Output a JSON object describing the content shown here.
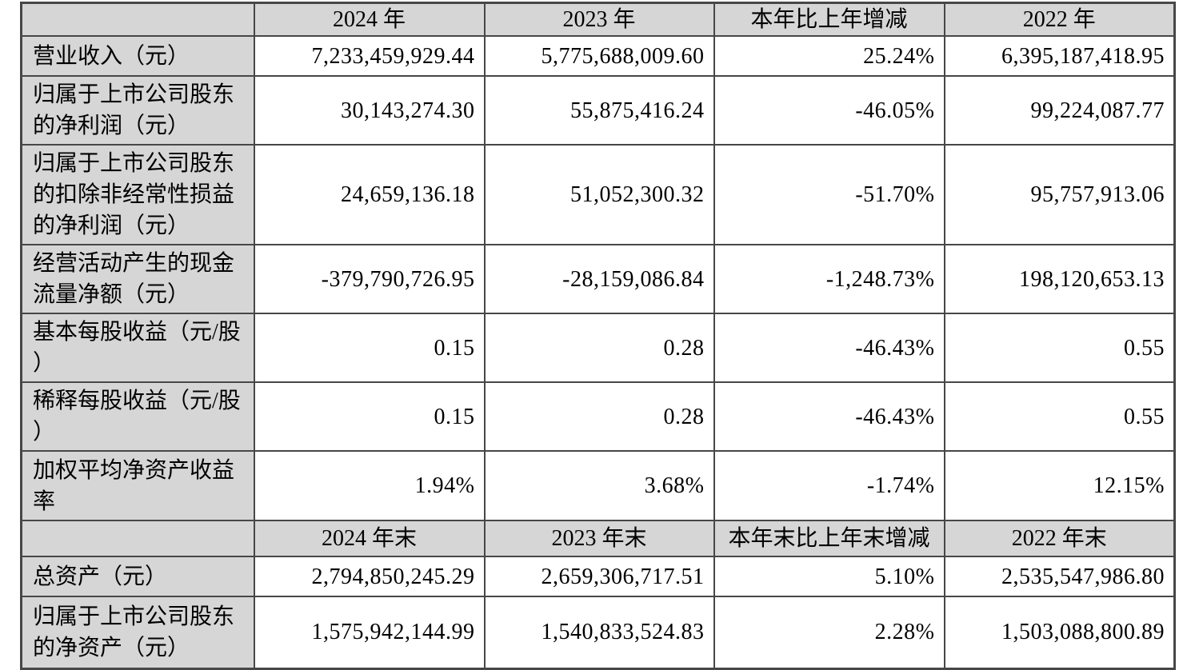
{
  "table": {
    "title_semantic": "key-financial-indicators-table",
    "colors": {
      "header_background": "#d6d6d6",
      "label_background": "#d6d6d6",
      "value_background": "#ffffff",
      "border": "#474747",
      "text": "#000000"
    },
    "sections": [
      {
        "header": {
          "col0": "",
          "cols": [
            "2024 年",
            "2023 年",
            "本年比上年增减",
            "2022 年"
          ]
        },
        "rows": [
          {
            "label": "营业收入（元）",
            "values": [
              "7,233,459,929.44",
              "5,775,688,009.60",
              "25.24%",
              "6,395,187,418.95"
            ]
          },
          {
            "label": "归属于上市公司股东的净利润（元）",
            "values": [
              "30,143,274.30",
              "55,875,416.24",
              "-46.05%",
              "99,224,087.77"
            ]
          },
          {
            "label": "归属于上市公司股东的扣除非经常性损益的净利润（元）",
            "values": [
              "24,659,136.18",
              "51,052,300.32",
              "-51.70%",
              "95,757,913.06"
            ]
          },
          {
            "label": "经营活动产生的现金流量净额（元）",
            "values": [
              "-379,790,726.95",
              "-28,159,086.84",
              "-1,248.73%",
              "198,120,653.13"
            ]
          },
          {
            "label": "基本每股收益（元/股）",
            "values": [
              "0.15",
              "0.28",
              "-46.43%",
              "0.55"
            ]
          },
          {
            "label": "稀释每股收益（元/股）",
            "values": [
              "0.15",
              "0.28",
              "-46.43%",
              "0.55"
            ]
          },
          {
            "label": "加权平均净资产收益率",
            "values": [
              "1.94%",
              "3.68%",
              "-1.74%",
              "12.15%"
            ]
          }
        ]
      },
      {
        "header": {
          "col0": "",
          "cols": [
            "2024 年末",
            "2023 年末",
            "本年末比上年末增减",
            "2022 年末"
          ]
        },
        "rows": [
          {
            "label": "总资产（元）",
            "values": [
              "2,794,850,245.29",
              "2,659,306,717.51",
              "5.10%",
              "2,535,547,986.80"
            ]
          },
          {
            "label": "归属于上市公司股东的净资产（元）",
            "values": [
              "1,575,942,144.99",
              "1,540,833,524.83",
              "2.28%",
              "1,503,088,800.89"
            ]
          }
        ]
      }
    ]
  }
}
